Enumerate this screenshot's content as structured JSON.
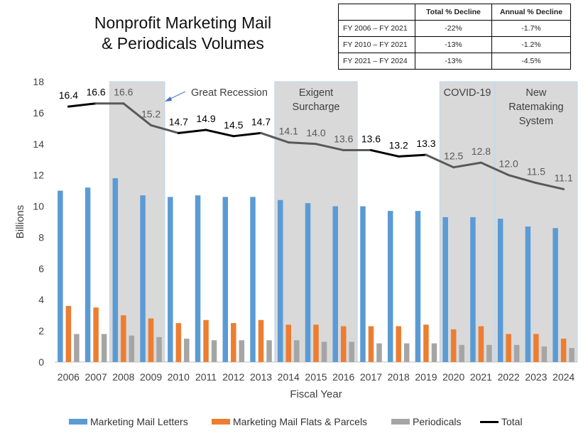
{
  "title_lines": [
    "Nonprofit Marketing Mail",
    "& Periodicals Volumes"
  ],
  "decline_table": {
    "headers": [
      "",
      "Total % Decline",
      "Annual % Decline"
    ],
    "rows": [
      [
        "FY 2006 – FY 2021",
        "-22%",
        "-1.7%"
      ],
      [
        "FY 2010 – FY 2021",
        "-13%",
        "-1.2%"
      ],
      [
        "FY 2021 – FY 2024",
        "-13%",
        "-4.5%"
      ]
    ]
  },
  "chart_data": {
    "type": "bar",
    "categories": [
      "2006",
      "2007",
      "2008",
      "2009",
      "2010",
      "2011",
      "2012",
      "2013",
      "2014",
      "2015",
      "2016",
      "2017",
      "2018",
      "2019",
      "2020",
      "2021",
      "2022",
      "2023",
      "2024"
    ],
    "xlabel": "Fiscal Year",
    "ylabel": "Billions",
    "ylim": [
      0,
      18
    ],
    "yticks": [
      0,
      2,
      4,
      6,
      8,
      10,
      12,
      14,
      16,
      18
    ],
    "series": [
      {
        "name": "Marketing Mail Letters",
        "kind": "bar",
        "color": "#5b9bd5",
        "values": [
          11.0,
          11.2,
          11.8,
          10.7,
          10.6,
          10.7,
          10.6,
          10.6,
          10.4,
          10.2,
          10.0,
          10.0,
          9.7,
          9.7,
          9.3,
          9.3,
          9.2,
          8.7,
          8.6
        ]
      },
      {
        "name": "Marketing Mail Flats & Parcels",
        "kind": "bar",
        "color": "#ed7d31",
        "values": [
          3.6,
          3.5,
          3.0,
          2.8,
          2.5,
          2.7,
          2.5,
          2.7,
          2.4,
          2.4,
          2.3,
          2.3,
          2.3,
          2.4,
          2.1,
          2.3,
          1.8,
          1.8,
          1.5
        ]
      },
      {
        "name": "Periodicals",
        "kind": "bar",
        "color": "#a5a5a5",
        "values": [
          1.8,
          1.8,
          1.7,
          1.6,
          1.5,
          1.4,
          1.4,
          1.4,
          1.4,
          1.3,
          1.3,
          1.2,
          1.2,
          1.2,
          1.1,
          1.1,
          1.1,
          1.0,
          0.9
        ]
      },
      {
        "name": "Total",
        "kind": "line",
        "color": "#000000",
        "values": [
          16.4,
          16.6,
          16.6,
          15.2,
          14.7,
          14.9,
          14.5,
          14.7,
          14.1,
          14.0,
          13.6,
          13.6,
          13.2,
          13.3,
          12.5,
          12.8,
          12.0,
          11.5,
          11.1
        ],
        "labels": [
          "16.4",
          "16.6",
          "16.6",
          "15.2",
          "14.7",
          "14.9",
          "14.5",
          "14.7",
          "14.1",
          "14.0",
          "13.6",
          "13.6",
          "13.2",
          "13.3",
          "12.5",
          "12.8",
          "12.0",
          "11.5",
          "11.1"
        ]
      }
    ],
    "shaded_periods": [
      {
        "label_lines": [],
        "from": "2008",
        "to": "2009"
      },
      {
        "label_lines": [
          "Exigent",
          "Surcharge"
        ],
        "from": "2014",
        "to": "2016"
      },
      {
        "label_lines": [
          "COVID-19"
        ],
        "from": "2020",
        "to": "2021"
      },
      {
        "label_lines": [
          "New",
          "Ratemaking",
          "System"
        ],
        "from": "2022",
        "to": "2024"
      }
    ],
    "annotation": {
      "text": "Great Recession",
      "points_to": "2009"
    },
    "legend_position": "bottom",
    "grid": false
  }
}
